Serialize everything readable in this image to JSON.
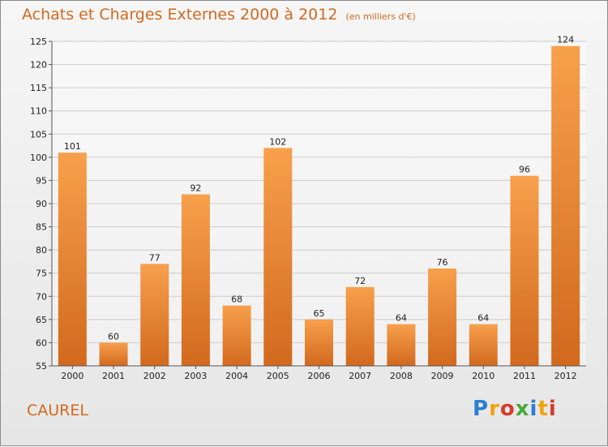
{
  "title": "Achats et Charges Externes 2000 à 2012",
  "unit": "(en milliers d'€)",
  "commune": "CAUREL",
  "logo": {
    "text": "Proxiti",
    "colors": [
      "#2a7fd4",
      "#f2a30b",
      "#d23c2a",
      "#4aa83c",
      "#2a7fd4",
      "#f2a30b",
      "#d23c2a"
    ]
  },
  "colors": {
    "bar": "#f0913a",
    "bar_dark": "#d2691e",
    "title": "#d2691e",
    "grid": "#cccccc"
  },
  "chart_data": {
    "type": "bar",
    "title": "Achats et Charges Externes 2000 à 2012",
    "categories": [
      "2000",
      "2001",
      "2002",
      "2003",
      "2004",
      "2005",
      "2006",
      "2007",
      "2008",
      "2009",
      "2010",
      "2011",
      "2012"
    ],
    "values": [
      101,
      60,
      77,
      92,
      68,
      102,
      65,
      72,
      64,
      76,
      64,
      96,
      124
    ],
    "ylim": [
      55,
      125
    ],
    "yticks": [
      55,
      60,
      65,
      70,
      75,
      80,
      85,
      90,
      95,
      100,
      105,
      110,
      115,
      120,
      125
    ],
    "grid": true
  }
}
